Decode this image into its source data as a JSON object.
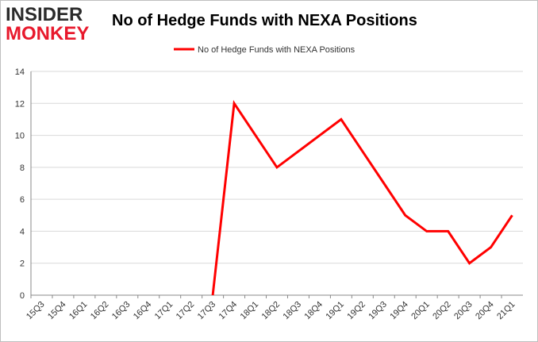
{
  "logo": {
    "line1": "INSIDER",
    "line2": "MONKEY",
    "color_line1": "#2b2b2b",
    "color_line2": "#e8192c"
  },
  "chart_data": {
    "type": "line",
    "title": "No of Hedge Funds with NEXA Positions",
    "xlabel": "",
    "ylabel": "",
    "categories": [
      "15Q3",
      "15Q4",
      "16Q1",
      "16Q2",
      "16Q3",
      "16Q4",
      "17Q1",
      "17Q2",
      "17Q3",
      "17Q4",
      "18Q1",
      "18Q2",
      "18Q3",
      "18Q4",
      "19Q1",
      "19Q2",
      "19Q3",
      "19Q4",
      "20Q1",
      "20Q2",
      "20Q3",
      "20Q4",
      "21Q1"
    ],
    "series": [
      {
        "name": "No of Hedge Funds with NEXA Positions",
        "color": "#ff0000",
        "values": [
          null,
          null,
          null,
          null,
          null,
          null,
          null,
          null,
          0,
          12,
          10,
          8,
          9,
          10,
          11,
          9,
          7,
          5,
          4,
          4,
          2,
          3,
          5
        ]
      }
    ],
    "ylim": [
      0,
      14
    ],
    "yticks": [
      0,
      2,
      4,
      6,
      8,
      10,
      12,
      14
    ],
    "grid": true,
    "legend_position": "top-center"
  }
}
